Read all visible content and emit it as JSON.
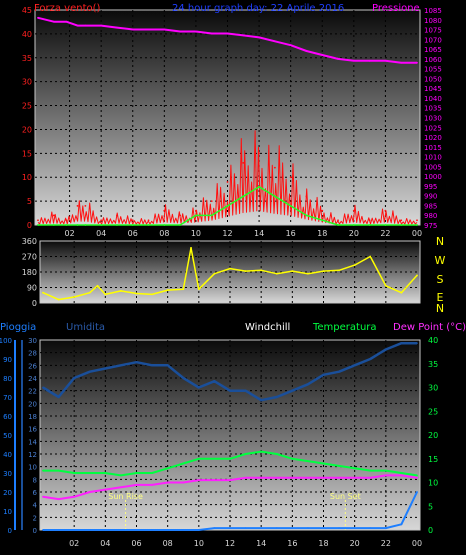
{
  "header": {
    "left_label": "Forza vento()",
    "title": "24 hour graph day:  22 Aprile 2016",
    "right_label": "Pressione"
  },
  "colors": {
    "wind": "#ff1010",
    "gust": "#20ff20",
    "pressure": "#ff00ff",
    "direction": "#ffff00",
    "rain": "#1e7fff",
    "humidity": "#1a4f9a",
    "windchill": "#ffffff",
    "temperature": "#00ff40",
    "dewpoint": "#ff20ff",
    "sun_marker": "#ffff80"
  },
  "chart_data": [
    {
      "type": "line",
      "id": "wind-pressure",
      "title": "24 hour graph day:  22 Aprile 2016",
      "x_ticks": [
        "02",
        "04",
        "06",
        "08",
        "10",
        "12",
        "14",
        "16",
        "18",
        "20",
        "22",
        "00"
      ],
      "y_left": {
        "label": "Forza vento()",
        "min": 0,
        "max": 45,
        "ticks": [
          0,
          5,
          10,
          15,
          20,
          25,
          30,
          35,
          40,
          45
        ]
      },
      "y_right": {
        "label": "Pressione",
        "min": 975,
        "max": 1085,
        "ticks": [
          975,
          980,
          985,
          990,
          995,
          1000,
          1005,
          1010,
          1015,
          1020,
          1025,
          1030,
          1035,
          1040,
          1045,
          1050,
          1055,
          1060,
          1065,
          1070,
          1075,
          1080,
          1085
        ]
      },
      "x": [
        0.0,
        1.0,
        1.8,
        2.5,
        3.0,
        4.0,
        5.0,
        6.0,
        7.0,
        8.0,
        9.0,
        10.0,
        11.0,
        12.0,
        13.0,
        14.0,
        15.0,
        16.0,
        17.0,
        18.0,
        19.0,
        20.0,
        21.0,
        22.0,
        23.0,
        24.0
      ],
      "series": [
        {
          "name": "Forza vento",
          "color_key": "wind",
          "axis": "left",
          "style": "spiky",
          "values": [
            1,
            2,
            1,
            4,
            4,
            1,
            2,
            1,
            1,
            3,
            2,
            3,
            5,
            9,
            13,
            15,
            12,
            10,
            6,
            3,
            1,
            3,
            1,
            3,
            1,
            1
          ]
        },
        {
          "name": "Raffica media",
          "color_key": "gust",
          "axis": "left",
          "style": "line",
          "values": [
            0,
            0,
            0,
            0,
            0,
            0,
            0,
            0,
            0,
            0,
            0,
            2,
            2,
            4,
            6,
            8,
            6,
            4,
            2,
            1,
            0,
            0,
            0,
            0,
            0,
            0
          ]
        },
        {
          "name": "Pressione",
          "color_key": "pressure",
          "axis": "right",
          "style": "line",
          "values": [
            1081,
            1079,
            1079,
            1077,
            1077,
            1077,
            1076,
            1075,
            1075,
            1075,
            1074,
            1074,
            1073,
            1073,
            1072,
            1071,
            1069,
            1067,
            1064,
            1062,
            1060,
            1059,
            1059,
            1059,
            1058,
            1058
          ]
        }
      ]
    },
    {
      "type": "line",
      "id": "wind-direction",
      "x_ticks": [],
      "y_left": {
        "min": 0,
        "max": 360,
        "ticks": [
          0,
          90,
          180,
          270,
          360
        ]
      },
      "y_right_letters": [
        "N",
        "W",
        "S",
        "E",
        "N"
      ],
      "x": [
        0.0,
        1.0,
        2.0,
        3.0,
        3.5,
        4.0,
        5.0,
        6.0,
        7.0,
        8.0,
        9.0,
        9.5,
        10.0,
        11.0,
        12.0,
        13.0,
        14.0,
        15.0,
        16.0,
        17.0,
        18.0,
        19.0,
        20.0,
        21.0,
        22.0,
        23.0,
        24.0
      ],
      "series": [
        {
          "name": "Direzione vento",
          "color_key": "direction",
          "values": [
            60,
            20,
            35,
            60,
            100,
            50,
            70,
            55,
            50,
            75,
            80,
            320,
            80,
            170,
            200,
            185,
            190,
            170,
            185,
            170,
            185,
            190,
            220,
            270,
            100,
            60,
            160
          ]
        }
      ]
    },
    {
      "type": "line",
      "id": "rain-humidity-temperature",
      "legend": [
        "Pioggia",
        "Umidita",
        "Windchill",
        "Temperatura",
        "Dew Point (°C)"
      ],
      "x_ticks": [
        "02",
        "04",
        "06",
        "08",
        "10",
        "12",
        "14",
        "16",
        "18",
        "20",
        "22",
        "00"
      ],
      "y_left_outer": {
        "label": "Pioggia",
        "min": 0,
        "max": 100,
        "ticks": [
          0,
          10,
          20,
          30,
          40,
          50,
          60,
          70,
          80,
          90,
          100
        ]
      },
      "y_left_inner": {
        "label": "Umidita",
        "min": 0,
        "max": 30,
        "ticks": [
          0,
          2,
          4,
          6,
          8,
          10,
          12,
          14,
          16,
          18,
          20,
          22,
          24,
          26,
          28,
          30
        ]
      },
      "y_right": {
        "label": "Dew Point (°C)",
        "min": 0,
        "max": 40,
        "ticks": [
          0,
          5,
          10,
          15,
          20,
          25,
          30,
          35,
          40
        ]
      },
      "x": [
        0.0,
        1.0,
        2.0,
        3.0,
        4.0,
        5.0,
        6.0,
        7.0,
        8.0,
        9.0,
        10.0,
        11.0,
        12.0,
        13.0,
        14.0,
        15.0,
        16.0,
        17.0,
        18.0,
        19.0,
        20.0,
        21.0,
        22.0,
        23.0,
        24.0
      ],
      "annotations": [
        {
          "label": "Sun Rise",
          "x": 5.3
        },
        {
          "label": "Sun Set",
          "x": 19.4
        }
      ],
      "series": [
        {
          "name": "Pioggia",
          "color_key": "rain",
          "axis": "left_outer",
          "values": [
            0,
            0,
            0,
            0,
            0,
            0,
            0,
            0,
            0,
            0,
            0,
            1,
            1,
            1,
            1,
            1,
            1,
            1,
            1,
            1,
            1,
            1,
            1,
            3,
            20
          ]
        },
        {
          "name": "Umidita",
          "color_key": "humidity",
          "axis": "left_inner",
          "values": [
            22.5,
            21,
            24,
            25,
            25.5,
            26,
            26.5,
            26,
            26,
            24,
            22.5,
            23.5,
            22,
            22,
            20.5,
            21,
            22,
            23,
            24.5,
            25,
            26,
            27,
            28.5,
            29.5,
            29.5
          ]
        },
        {
          "name": "Temperatura",
          "color_key": "temperature",
          "axis": "right",
          "values": [
            12.5,
            12.5,
            12,
            12,
            12,
            11.5,
            12,
            12,
            13,
            14,
            15,
            15,
            15,
            16,
            16.5,
            16,
            15,
            14.5,
            14,
            13.5,
            13,
            12.5,
            12.5,
            12,
            11.5
          ]
        },
        {
          "name": "Dew Point",
          "color_key": "dewpoint",
          "axis": "right",
          "values": [
            7,
            6.5,
            7,
            8,
            8.5,
            9,
            9.5,
            9.5,
            10,
            10,
            10.5,
            10.5,
            10.5,
            11,
            11,
            11,
            11,
            11,
            11,
            11,
            11,
            11,
            11.5,
            11.5,
            11
          ]
        }
      ]
    }
  ]
}
